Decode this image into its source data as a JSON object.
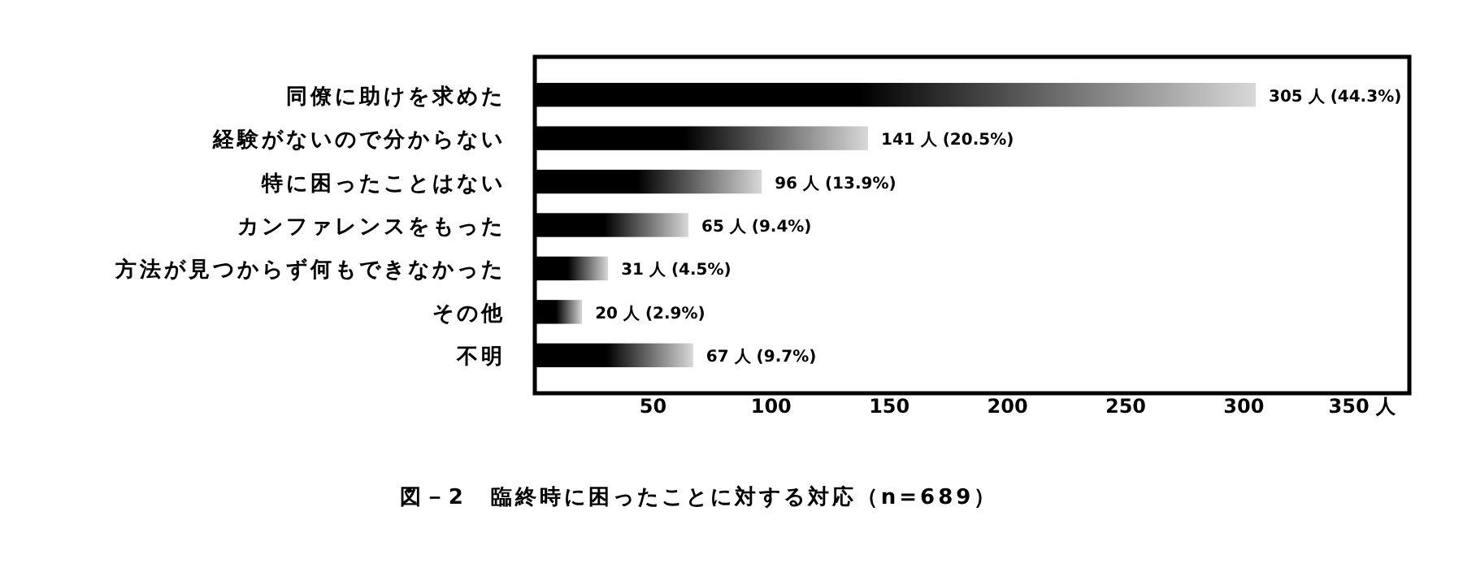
{
  "chart_data": {
    "type": "bar",
    "orientation": "horizontal",
    "title": "図－2　臨終時に困ったことに対する対応（n=689）",
    "categories": [
      "同僚に助けを求めた",
      "経験がないので分からない",
      "特に困ったことはない",
      "カンファレンスをもった",
      "方法が見つからず何もできなかった",
      "その他",
      "不明"
    ],
    "values": [
      305,
      141,
      96,
      65,
      31,
      20,
      67
    ],
    "value_labels": [
      "305 人 (44.3%)",
      "141 人 (20.5%)",
      "96 人 (13.9%)",
      "65 人 (9.4%)",
      "31 人 (4.5%)",
      "20 人 (2.9%)",
      "67 人 (9.7%)"
    ],
    "color": "#000000",
    "xlim": [
      0,
      370
    ],
    "xticks": [
      50,
      100,
      150,
      200,
      250,
      300,
      {
        "value": 350,
        "label": "350 人"
      }
    ]
  }
}
